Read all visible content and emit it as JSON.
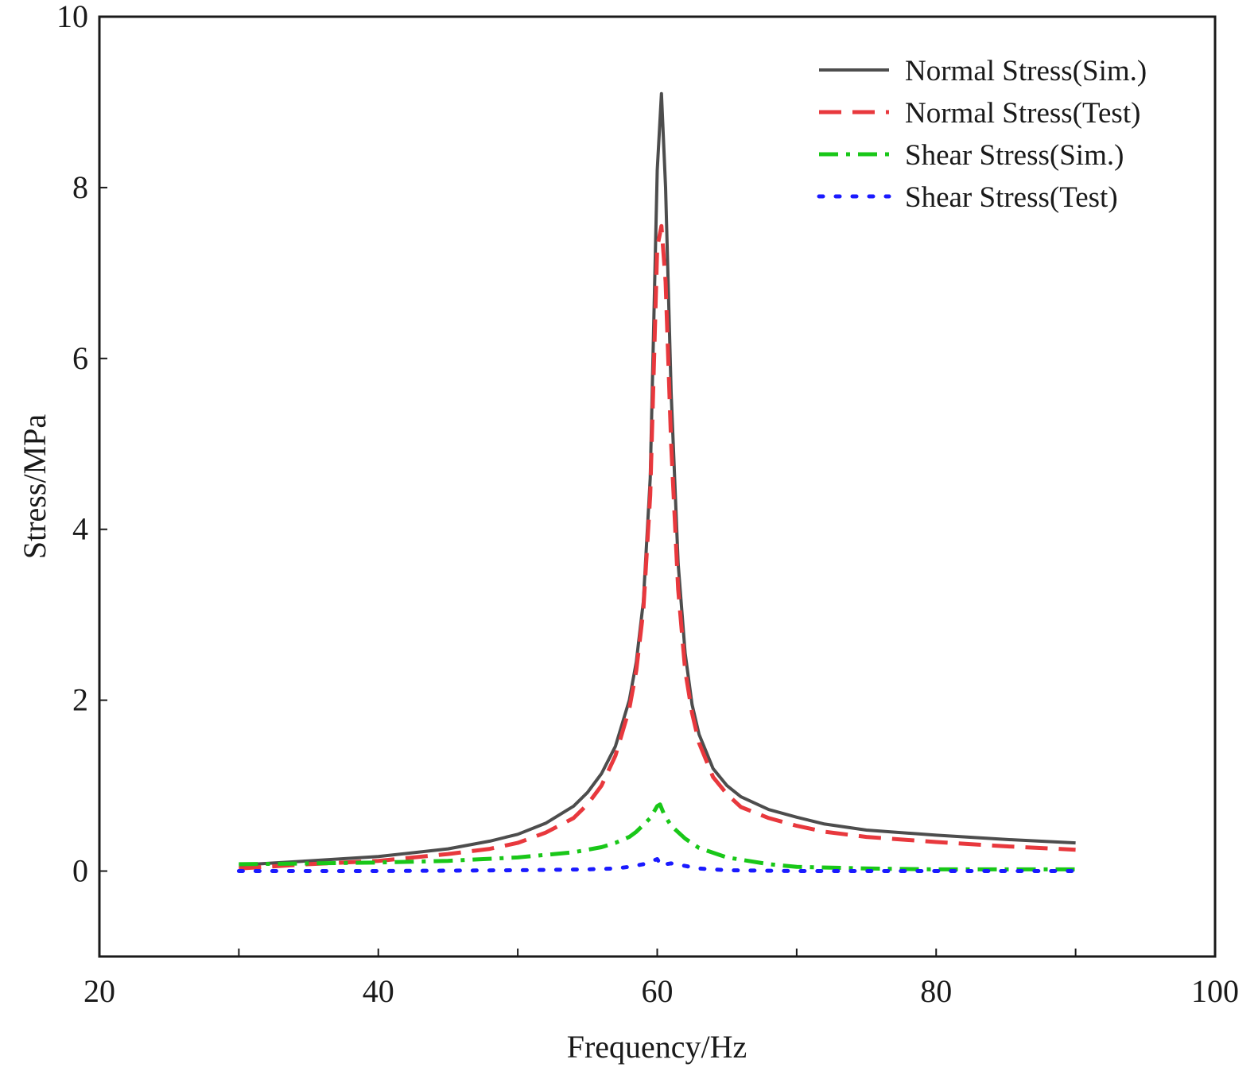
{
  "chart_data": {
    "type": "line",
    "title": "",
    "xlabel": "Frequency/Hz",
    "ylabel": "Stress/MPa",
    "xlim": [
      20,
      100
    ],
    "ylim": [
      -1,
      10
    ],
    "xticks": [
      "20",
      "40",
      "60",
      "80",
      "100"
    ],
    "yticks": [
      "0",
      "2",
      "4",
      "6",
      "8",
      "10"
    ],
    "grid": false,
    "legend_position": "top-right",
    "series": [
      {
        "name": "Normal Stress(Sim.)",
        "color": "#4d4d4d",
        "style": "solid",
        "x": [
          30,
          35,
          40,
          45,
          48,
          50,
          52,
          54,
          55,
          56,
          57,
          58,
          58.5,
          59,
          59.5,
          60,
          60.3,
          60.6,
          61,
          61.5,
          62,
          62.5,
          63,
          64,
          65,
          66,
          68,
          70,
          72,
          75,
          80,
          85,
          90
        ],
        "y": [
          0.07,
          0.12,
          0.17,
          0.26,
          0.35,
          0.43,
          0.56,
          0.76,
          0.92,
          1.14,
          1.46,
          2.0,
          2.45,
          3.15,
          4.6,
          8.2,
          9.1,
          8.0,
          5.6,
          3.6,
          2.55,
          1.95,
          1.6,
          1.2,
          1.0,
          0.87,
          0.72,
          0.63,
          0.55,
          0.48,
          0.42,
          0.37,
          0.33
        ]
      },
      {
        "name": "Normal Stress(Test)",
        "color": "#e8383d",
        "style": "dashed",
        "x": [
          30,
          35,
          40,
          45,
          48,
          50,
          52,
          54,
          55,
          56,
          57,
          58,
          58.5,
          59,
          59.5,
          60,
          60.3,
          60.6,
          61,
          61.5,
          62,
          62.5,
          63,
          64,
          65,
          66,
          68,
          70,
          72,
          75,
          80,
          85,
          90
        ],
        "y": [
          0.03,
          0.08,
          0.12,
          0.2,
          0.26,
          0.33,
          0.45,
          0.62,
          0.78,
          1.0,
          1.35,
          1.9,
          2.35,
          3.05,
          4.4,
          7.3,
          7.55,
          6.9,
          5.0,
          3.3,
          2.35,
          1.85,
          1.5,
          1.1,
          0.9,
          0.75,
          0.62,
          0.53,
          0.46,
          0.4,
          0.34,
          0.29,
          0.25
        ]
      },
      {
        "name": "Shear Stress(Sim.)",
        "color": "#19c718",
        "style": "dashdot",
        "x": [
          30,
          35,
          40,
          45,
          50,
          54,
          56,
          57,
          58,
          58.5,
          59,
          59.5,
          60,
          60.2,
          60.5,
          61,
          62,
          63,
          65,
          68,
          70,
          75,
          80,
          85,
          90
        ],
        "y": [
          0.08,
          0.09,
          0.1,
          0.12,
          0.16,
          0.22,
          0.28,
          0.33,
          0.4,
          0.46,
          0.54,
          0.62,
          0.76,
          0.78,
          0.66,
          0.53,
          0.38,
          0.27,
          0.16,
          0.08,
          0.05,
          0.03,
          0.02,
          0.02,
          0.02
        ]
      },
      {
        "name": "Shear Stress(Test)",
        "color": "#1a1aff",
        "style": "dotted",
        "x": [
          30,
          40,
          50,
          55,
          57,
          58,
          59,
          59.5,
          60,
          60.3,
          60.6,
          61,
          62,
          63,
          65,
          70,
          80,
          90
        ],
        "y": [
          0.0,
          0.0,
          0.01,
          0.02,
          0.03,
          0.05,
          0.08,
          0.11,
          0.14,
          0.06,
          0.08,
          0.09,
          0.06,
          0.03,
          0.01,
          0.0,
          0.0,
          0.0
        ]
      }
    ]
  }
}
